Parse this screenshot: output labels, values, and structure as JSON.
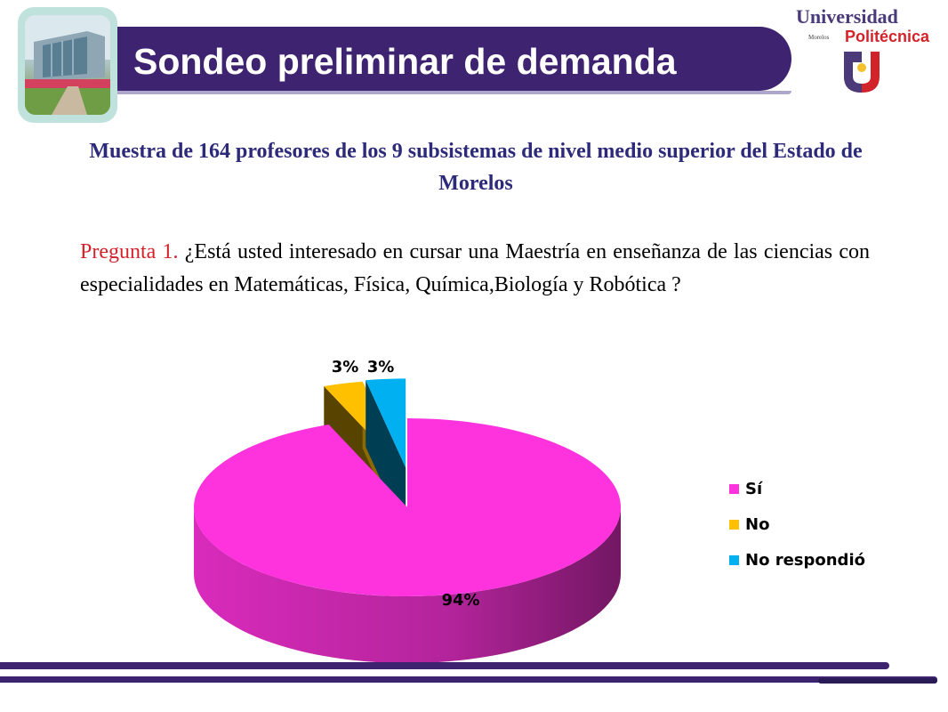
{
  "header": {
    "title": "Sondeo preliminar de demanda",
    "logo": {
      "line1": "Universidad",
      "line2_small": "Morelos",
      "line2": "Politécnica",
      "colors": {
        "purple": "#4a3a7a",
        "red": "#d2232a"
      }
    }
  },
  "subtitle": "Muestra de 164 profesores de los 9 subsistemas de nivel medio superior del Estado de Morelos",
  "question": {
    "number": "Pregunta 1.",
    "text": "¿Está usted interesado en cursar una Maestría en enseñanza de las ciencias  con especialidades en Matemáticas, Física, Química,Biología y Robótica  ?"
  },
  "chart_data": {
    "type": "pie",
    "style": "3d-exploded",
    "categories": [
      "Sí",
      "No",
      "No respondió"
    ],
    "values": [
      94,
      3,
      3
    ],
    "labels": [
      "94%",
      "3%",
      "3%"
    ],
    "unit": "%",
    "colors": [
      "#ff33dd",
      "#ffc000",
      "#00b0f0"
    ],
    "legend": "right",
    "title": ""
  },
  "theme": {
    "title_bar": "#3d2370",
    "subtitle_color": "#2d2a7a",
    "question_number_color": "#d2232a"
  }
}
